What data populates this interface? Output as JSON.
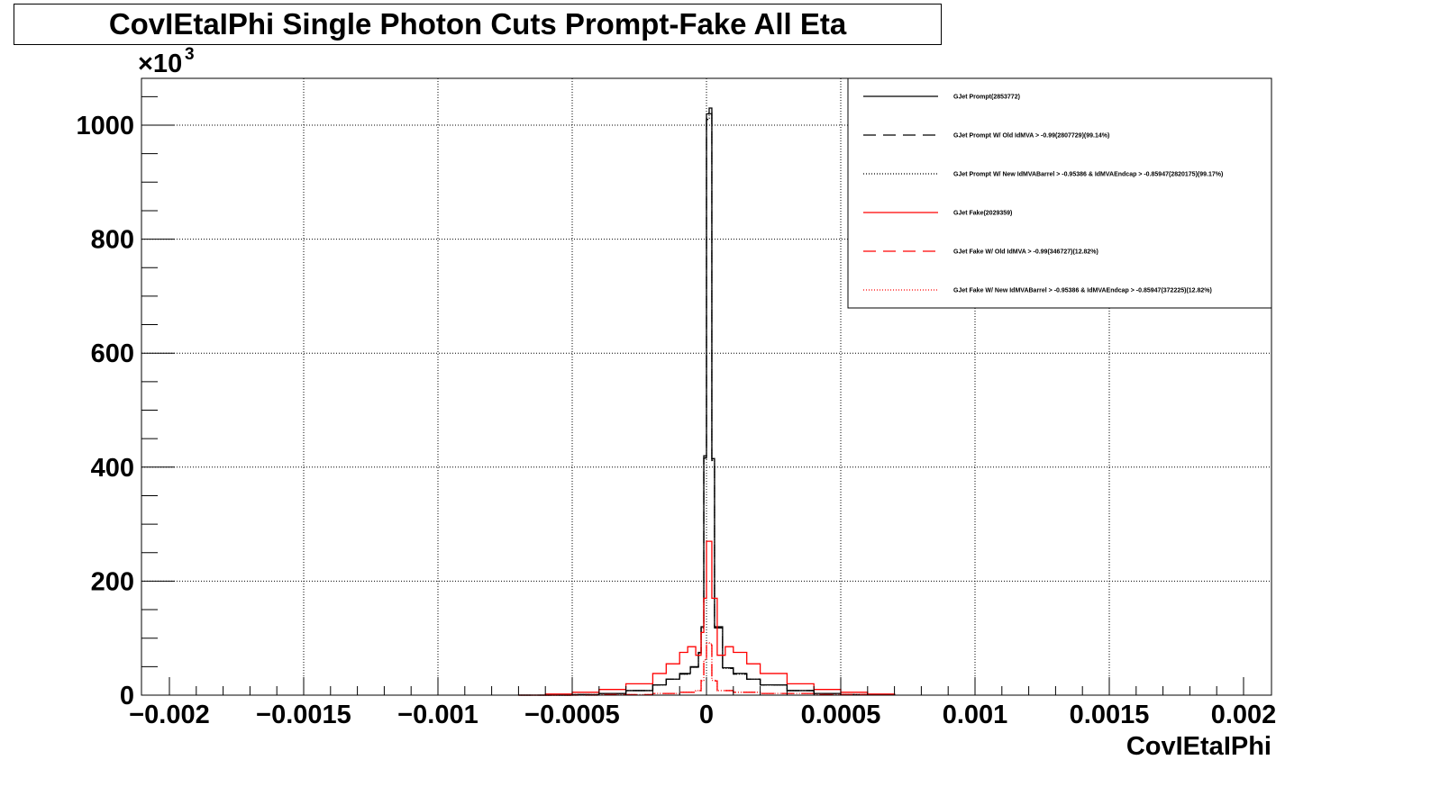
{
  "chart_data": {
    "type": "line",
    "title": "CovIEtaIPhi Single Photon Cuts Prompt-Fake All Eta",
    "xlabel": "CovIEtaIPhi",
    "ylabel": "",
    "y_multiplier": "×10",
    "y_multiplier_exp": "3",
    "xlim": [
      -0.002,
      0.002
    ],
    "ylim": [
      0,
      1080
    ],
    "x_ticks": [
      -0.002,
      -0.0015,
      -0.001,
      -0.0005,
      0,
      0.0005,
      0.001,
      0.0015,
      0.002
    ],
    "x_tick_labels": [
      "−0.002",
      "−0.0015",
      "−0.001",
      "−0.0005",
      "0",
      "0.0005",
      "0.001",
      "0.0015",
      "0.002"
    ],
    "y_ticks": [
      0,
      200,
      400,
      600,
      800,
      1000
    ],
    "y_tick_labels": [
      "0",
      "200",
      "400",
      "600",
      "800",
      "1000"
    ],
    "grid": true,
    "legend_position": "top-right",
    "series": [
      {
        "name": "GJet Prompt(2853772)",
        "color": "#000000",
        "style": "solid",
        "x": [
          -0.0007,
          -0.0005,
          -0.0004,
          -0.0003,
          -0.0002,
          -0.00015,
          -0.0001,
          -6e-05,
          -3e-05,
          -2e-05,
          -1e-05,
          0.0,
          1e-05,
          2e-05,
          3e-05,
          6e-05,
          0.0001,
          0.00015,
          0.0002,
          0.0003,
          0.0004,
          0.0005,
          0.0007
        ],
        "y": [
          0,
          1,
          3,
          8,
          18,
          28,
          38,
          50,
          75,
          120,
          420,
          1020,
          1030,
          415,
          120,
          48,
          38,
          28,
          18,
          8,
          3,
          1,
          0
        ]
      },
      {
        "name": "GJet Prompt W/ Old IdMVA > -0.99(2807729)(99.14%)",
        "color": "#000000",
        "style": "dashed",
        "x": [
          -0.0007,
          -0.0005,
          -0.0004,
          -0.0003,
          -0.0002,
          -0.00015,
          -0.0001,
          -6e-05,
          -3e-05,
          -2e-05,
          -1e-05,
          0.0,
          1e-05,
          2e-05,
          3e-05,
          6e-05,
          0.0001,
          0.00015,
          0.0002,
          0.0003,
          0.0004,
          0.0005,
          0.0007
        ],
        "y": [
          0,
          1,
          3,
          8,
          18,
          28,
          37,
          49,
          74,
          118,
          416,
          1010,
          1020,
          410,
          118,
          47,
          37,
          28,
          18,
          8,
          3,
          1,
          0
        ]
      },
      {
        "name": "GJet Prompt W/ New IdMVABarrel > -0.95386 & IdMVAEndcap > -0.85947(2820175)(99.17%)",
        "color": "#000000",
        "style": "dotted",
        "x": [
          -0.0007,
          -0.0005,
          -0.0004,
          -0.0003,
          -0.0002,
          -0.00015,
          -0.0001,
          -6e-05,
          -3e-05,
          -2e-05,
          -1e-05,
          0.0,
          1e-05,
          2e-05,
          3e-05,
          6e-05,
          0.0001,
          0.00015,
          0.0002,
          0.0003,
          0.0004,
          0.0005,
          0.0007
        ],
        "y": [
          0,
          1,
          3,
          8,
          18,
          28,
          37,
          49,
          74,
          118,
          417,
          1012,
          1022,
          412,
          118,
          47,
          37,
          28,
          18,
          8,
          3,
          1,
          0
        ]
      },
      {
        "name": "GJet Fake(2029359)",
        "color": "#ff0000",
        "style": "solid",
        "x": [
          -0.0007,
          -0.0006,
          -0.0005,
          -0.0004,
          -0.0003,
          -0.0002,
          -0.00015,
          -0.0001,
          -7e-05,
          -4e-05,
          -2e-05,
          -1e-05,
          0.0,
          1e-05,
          2e-05,
          4e-05,
          7e-05,
          0.0001,
          0.00015,
          0.0002,
          0.0003,
          0.0004,
          0.0005,
          0.0006,
          0.0007
        ],
        "y": [
          0,
          2,
          5,
          10,
          20,
          38,
          55,
          75,
          85,
          70,
          110,
          170,
          270,
          270,
          170,
          70,
          85,
          75,
          55,
          38,
          20,
          10,
          5,
          2,
          0
        ]
      },
      {
        "name": "GJet Fake W/ Old IdMVA > -0.99(346727)(12.82%)",
        "color": "#ff0000",
        "style": "dashed",
        "x": [
          -0.0006,
          -0.0004,
          -0.0002,
          -0.0001,
          -4e-05,
          -2e-05,
          -1e-05,
          0.0,
          1e-05,
          2e-05,
          4e-05,
          0.0001,
          0.0002,
          0.0004,
          0.0006
        ],
        "y": [
          0,
          1,
          3,
          5,
          8,
          25,
          60,
          90,
          88,
          25,
          8,
          5,
          3,
          1,
          0
        ]
      },
      {
        "name": "GJet Fake W/ New IdMVABarrel > -0.95386 & IdMVAEndcap > -0.85947(372225)(12.82%)",
        "color": "#ff0000",
        "style": "dotted",
        "x": [
          -0.0006,
          -0.0004,
          -0.0002,
          -0.0001,
          -4e-05,
          -2e-05,
          -1e-05,
          0.0,
          1e-05,
          2e-05,
          4e-05,
          0.0001,
          0.0002,
          0.0004,
          0.0006
        ],
        "y": [
          0,
          1,
          3,
          5,
          8,
          26,
          62,
          92,
          90,
          26,
          8,
          5,
          3,
          1,
          0
        ]
      }
    ]
  }
}
